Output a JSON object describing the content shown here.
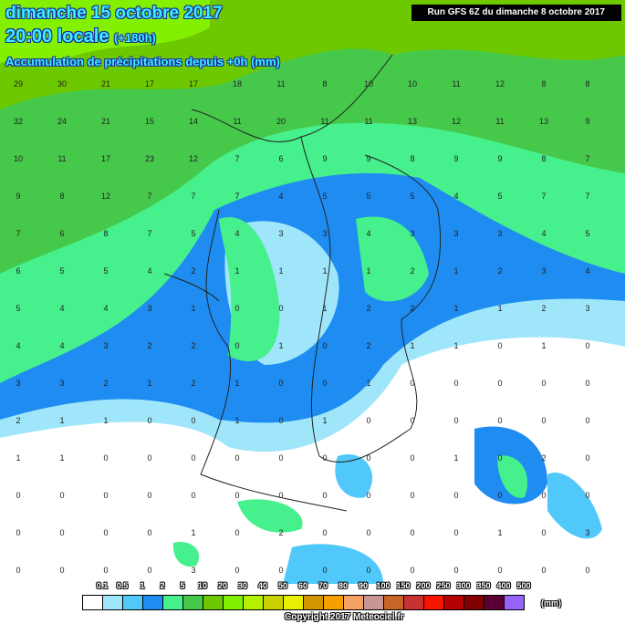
{
  "header": {
    "date": "dimanche 15 octobre 2017",
    "time": "20:00 locale",
    "lead": "(+180h)",
    "parameter": "Accumulation de précipitations depuis +0h (mm)",
    "run": "Run GFS 6Z du dimanche 8 octobre 2017"
  },
  "legend": {
    "unit": "(mm)",
    "thresholds": [
      "0.1",
      "0.5",
      "1",
      "2",
      "5",
      "10",
      "20",
      "30",
      "40",
      "50",
      "60",
      "70",
      "80",
      "90",
      "100",
      "150",
      "200",
      "250",
      "300",
      "350",
      "400",
      "500"
    ],
    "colors": [
      "#ffffff",
      "#a0e6fa",
      "#50c8fa",
      "#1e8cf0",
      "#46f08c",
      "#46c84b",
      "#6ec800",
      "#82f000",
      "#b4f000",
      "#c8d200",
      "#e6f000",
      "#d29600",
      "#f5a000",
      "#f5a064",
      "#c89696",
      "#c86428",
      "#c83232",
      "#f51400",
      "#b40000",
      "#820000",
      "#5a0032",
      "#9664fa"
    ]
  },
  "copyright": "Copyright 2017 Meteociel.fr",
  "grid_values": [
    [
      "29",
      "30",
      "21",
      "17",
      "17",
      "18",
      "11",
      "8",
      "10",
      "10",
      "11",
      "12",
      "8",
      "8"
    ],
    [
      "32",
      "24",
      "21",
      "15",
      "14",
      "11",
      "20",
      "11",
      "11",
      "13",
      "12",
      "11",
      "13",
      "9"
    ],
    [
      "10",
      "11",
      "17",
      "23",
      "12",
      "7",
      "6",
      "9",
      "9",
      "8",
      "9",
      "9",
      "8",
      "7"
    ],
    [
      "9",
      "8",
      "12",
      "7",
      "7",
      "7",
      "4",
      "5",
      "5",
      "5",
      "4",
      "5",
      "7",
      "7"
    ],
    [
      "7",
      "6",
      "8",
      "7",
      "5",
      "4",
      "3",
      "3",
      "4",
      "3",
      "3",
      "3",
      "4",
      "5"
    ],
    [
      "6",
      "5",
      "5",
      "4",
      "2",
      "1",
      "1",
      "1",
      "1",
      "2",
      "1",
      "2",
      "3",
      "4"
    ],
    [
      "5",
      "4",
      "4",
      "3",
      "1",
      "0",
      "0",
      "1",
      "2",
      "2",
      "1",
      "1",
      "2",
      "3"
    ],
    [
      "4",
      "4",
      "3",
      "2",
      "2",
      "0",
      "1",
      "0",
      "2",
      "1",
      "1",
      "0",
      "1",
      "0"
    ],
    [
      "3",
      "3",
      "2",
      "1",
      "2",
      "1",
      "0",
      "0",
      "1",
      "0",
      "0",
      "0",
      "0",
      "0"
    ],
    [
      "2",
      "1",
      "1",
      "0",
      "0",
      "1",
      "0",
      "1",
      "0",
      "0",
      "0",
      "0",
      "0",
      "0"
    ],
    [
      "1",
      "1",
      "0",
      "0",
      "0",
      "0",
      "0",
      "0",
      "0",
      "0",
      "1",
      "0",
      "2",
      "0"
    ],
    [
      "0",
      "0",
      "0",
      "0",
      "0",
      "0",
      "0",
      "0",
      "0",
      "0",
      "0",
      "0",
      "0",
      "0"
    ],
    [
      "0",
      "0",
      "0",
      "0",
      "1",
      "0",
      "2",
      "0",
      "0",
      "0",
      "0",
      "1",
      "0",
      "3"
    ],
    [
      "0",
      "0",
      "0",
      "0",
      "3",
      "0",
      "0",
      "0",
      "0",
      "0",
      "0",
      "0",
      "0",
      "0"
    ]
  ]
}
